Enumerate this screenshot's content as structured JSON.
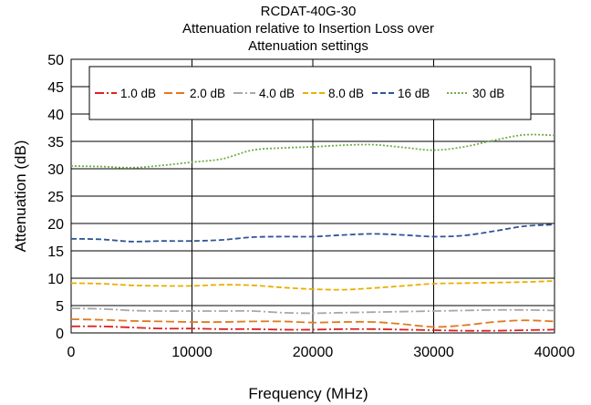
{
  "chart_data": {
    "type": "line",
    "title_lines": [
      "RCDAT-40G-30",
      "Attenuation relative to Insertion Loss over",
      "Attenuation settings"
    ],
    "xlabel": "Frequency (MHz)",
    "ylabel": "Attenuation (dB)",
    "xlim": [
      0,
      40000
    ],
    "ylim": [
      0,
      50
    ],
    "xticks": [
      0,
      10000,
      20000,
      30000,
      40000
    ],
    "xtick_labels": [
      "0",
      "10000",
      "20000",
      "30000",
      "40000"
    ],
    "yticks": [
      0,
      5,
      10,
      15,
      20,
      25,
      30,
      35,
      40,
      45,
      50
    ],
    "ytick_labels": [
      "0",
      "5",
      "10",
      "15",
      "20",
      "25",
      "30",
      "35",
      "40",
      "45",
      "50"
    ],
    "grid": "major gridlines on both axes",
    "legend_position": "top, inside plot",
    "series": [
      {
        "name": "1.0 dB",
        "color": "#e02020",
        "dash": "dash-dot",
        "x": [
          0,
          2500,
          5000,
          7500,
          10000,
          12500,
          15000,
          17500,
          20000,
          22500,
          25000,
          27500,
          30000,
          32500,
          35000,
          37500,
          40000
        ],
        "y": [
          1.2,
          1.2,
          1.0,
          0.8,
          0.8,
          0.7,
          0.7,
          0.6,
          0.6,
          0.7,
          0.7,
          0.6,
          0.5,
          0.4,
          0.4,
          0.5,
          0.6
        ]
      },
      {
        "name": "2.0 dB",
        "color": "#e07a20",
        "dash": "long-dash",
        "x": [
          0,
          2500,
          5000,
          7500,
          10000,
          12500,
          15000,
          17500,
          20000,
          22500,
          25000,
          27500,
          30000,
          32500,
          35000,
          37500,
          40000
        ],
        "y": [
          2.5,
          2.4,
          2.2,
          2.1,
          2.0,
          2.0,
          2.1,
          2.1,
          1.9,
          2.0,
          2.0,
          1.6,
          1.1,
          1.4,
          2.0,
          2.3,
          2.1
        ]
      },
      {
        "name": "4.0 dB",
        "color": "#a8a8a8",
        "dash": "dash-dot",
        "x": [
          0,
          2500,
          5000,
          7500,
          10000,
          12500,
          15000,
          17500,
          20000,
          22500,
          25000,
          27500,
          30000,
          32500,
          35000,
          37500,
          40000
        ],
        "y": [
          4.5,
          4.4,
          4.1,
          4.0,
          4.0,
          4.0,
          4.0,
          3.7,
          3.6,
          3.7,
          3.8,
          3.9,
          4.0,
          4.1,
          4.2,
          4.2,
          4.1
        ]
      },
      {
        "name": "8.0 dB",
        "color": "#e8b000",
        "dash": "dash",
        "x": [
          0,
          2500,
          5000,
          7500,
          10000,
          12500,
          15000,
          17500,
          20000,
          22500,
          25000,
          27500,
          30000,
          32500,
          35000,
          37500,
          40000
        ],
        "y": [
          9.1,
          9.0,
          8.7,
          8.6,
          8.6,
          8.8,
          8.7,
          8.3,
          8.0,
          7.9,
          8.2,
          8.6,
          9.0,
          9.1,
          9.2,
          9.3,
          9.5
        ]
      },
      {
        "name": "16 dB",
        "color": "#2f5597",
        "dash": "dash",
        "x": [
          0,
          2500,
          5000,
          7500,
          10000,
          12500,
          15000,
          17500,
          20000,
          22500,
          25000,
          27500,
          30000,
          32500,
          35000,
          37500,
          40000
        ],
        "y": [
          17.2,
          17.1,
          16.7,
          16.8,
          16.8,
          17.0,
          17.5,
          17.6,
          17.6,
          17.9,
          18.1,
          17.9,
          17.6,
          17.8,
          18.6,
          19.5,
          19.8
        ]
      },
      {
        "name": "30 dB",
        "color": "#70ad47",
        "dash": "dot",
        "x": [
          0,
          2500,
          5000,
          7500,
          10000,
          12500,
          15000,
          17500,
          20000,
          22500,
          25000,
          27500,
          30000,
          32500,
          35000,
          37500,
          40000
        ],
        "y": [
          30.5,
          30.4,
          30.2,
          30.6,
          31.2,
          31.8,
          33.4,
          33.8,
          34.0,
          34.3,
          34.4,
          33.9,
          33.4,
          34.0,
          35.2,
          36.2,
          36.1
        ]
      }
    ]
  }
}
